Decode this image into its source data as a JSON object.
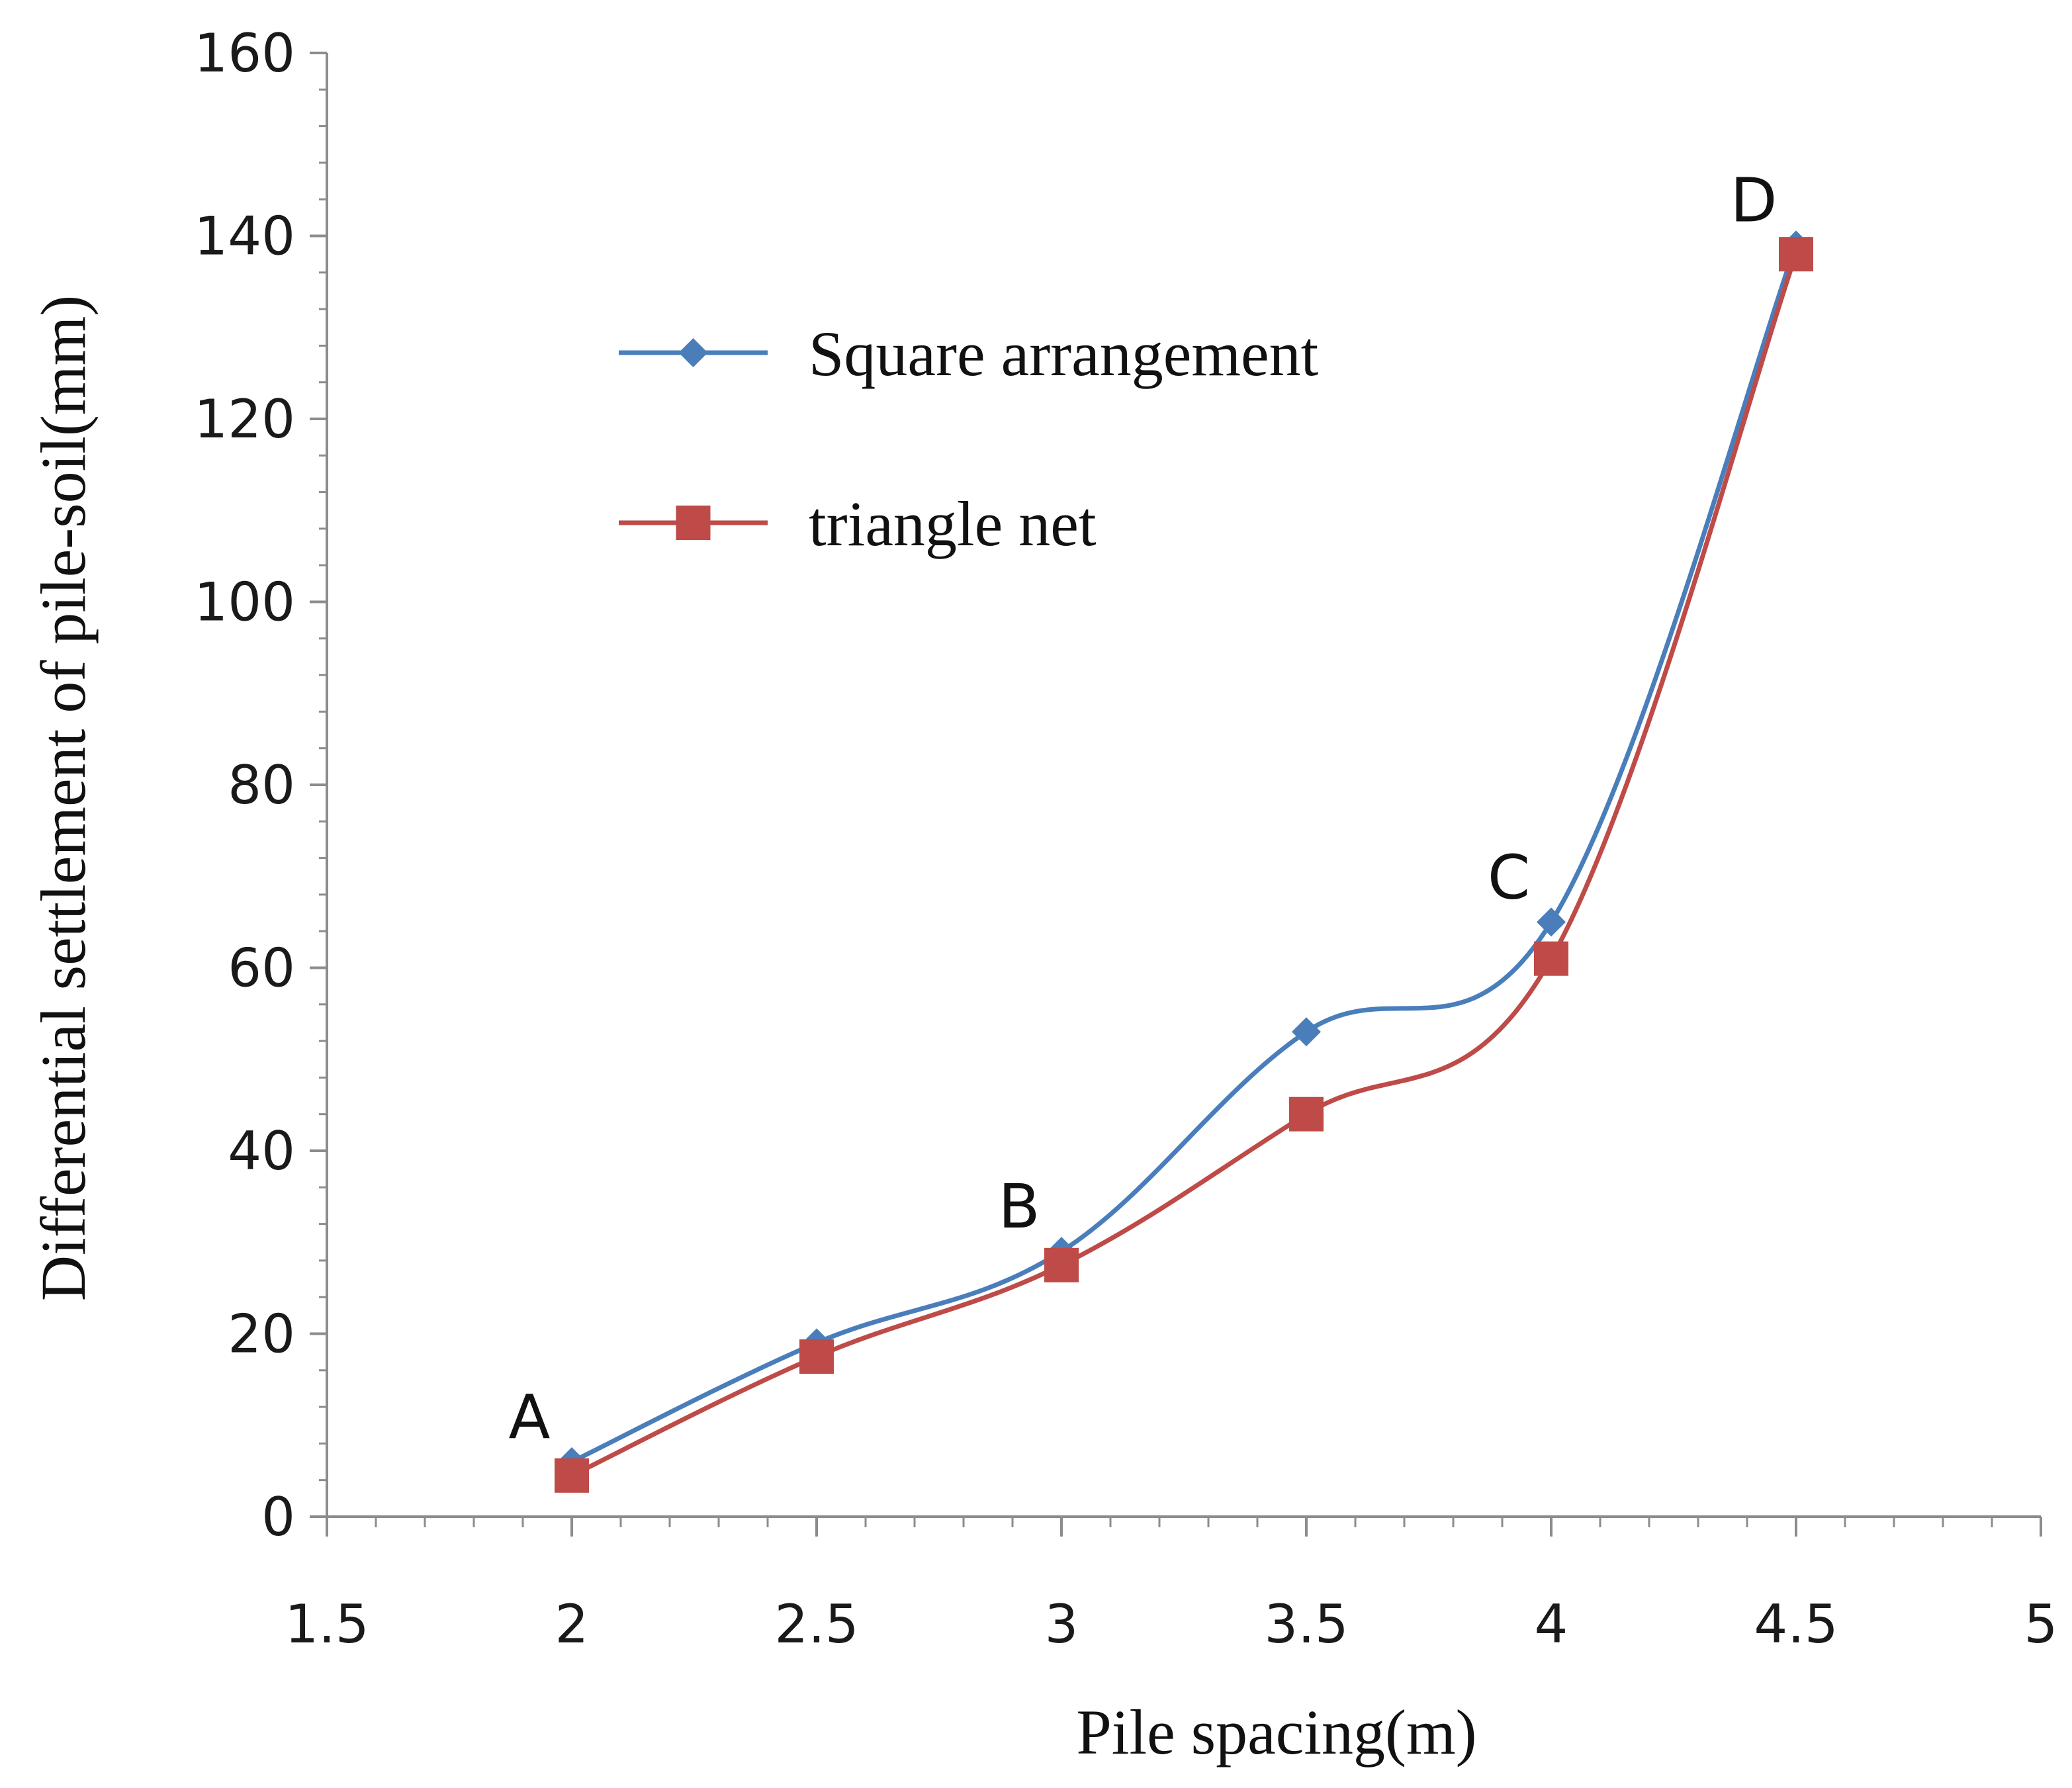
{
  "chart_data": {
    "type": "line",
    "title": "",
    "xlabel": "Pile spacing(m)",
    "ylabel": "Differential settlement of pile-soil(mm)",
    "xlim": [
      1.5,
      5
    ],
    "ylim": [
      0,
      160
    ],
    "x_ticks": [
      "1.5",
      "2",
      "2.5",
      "3",
      "3.5",
      "4",
      "4.5",
      "5"
    ],
    "y_ticks": [
      "0",
      "20",
      "40",
      "60",
      "80",
      "100",
      "120",
      "140",
      "160"
    ],
    "x": [
      2,
      2.5,
      3,
      3.5,
      4,
      4.5
    ],
    "series": [
      {
        "name": "Square arrangement",
        "values": [
          6,
          19,
          29,
          53,
          65,
          139
        ],
        "color": "#4a7ebb",
        "marker": "diamond"
      },
      {
        "name": "triangle net",
        "values": [
          4.5,
          17.5,
          27.5,
          44,
          61,
          138
        ],
        "color": "#be4b48",
        "marker": "square"
      }
    ],
    "annotations": [
      {
        "text": "A",
        "x": 2,
        "y": 6
      },
      {
        "text": "B",
        "x": 3,
        "y": 29
      },
      {
        "text": "C",
        "x": 4,
        "y": 65
      },
      {
        "text": "D",
        "x": 4.5,
        "y": 139
      }
    ],
    "legend_position": "upper-left",
    "grid": false
  }
}
